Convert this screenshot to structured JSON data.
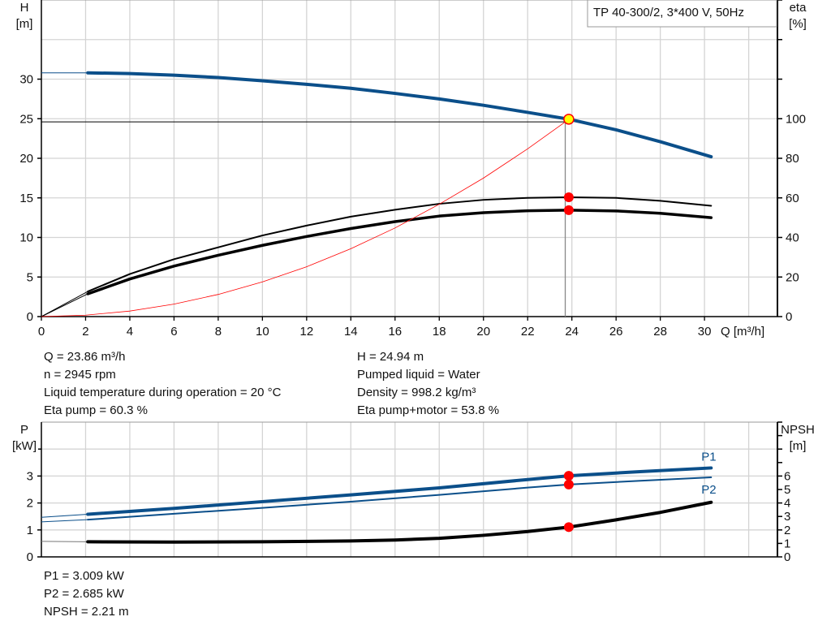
{
  "chart_data": [
    {
      "type": "line",
      "title": "TP 40-300/2, 3*400 V, 50Hz",
      "xlabel": "Q [m³/h]",
      "ylabel_left": [
        "H",
        "[m]"
      ],
      "ylabel_right": [
        "eta",
        "[%]"
      ],
      "xlim": [
        0,
        33.3
      ],
      "x_ticks": [
        0,
        2,
        4,
        6,
        8,
        10,
        12,
        14,
        16,
        18,
        20,
        22,
        24,
        26,
        28,
        30
      ],
      "ylim_left": [
        0,
        40
      ],
      "y_ticks_left": [
        0,
        5,
        10,
        15,
        20,
        25,
        30
      ],
      "ylim_right": [
        0,
        160
      ],
      "y_ticks_right": [
        0,
        20,
        40,
        60,
        80,
        100
      ],
      "grid": true,
      "series": [
        {
          "key": "H",
          "axis": "left",
          "color": "#0b4f8a",
          "x": [
            0,
            2.1,
            4,
            6,
            8,
            10,
            12,
            14,
            16,
            18,
            20,
            22,
            23.86,
            26,
            28,
            30.3
          ],
          "y": [
            30.8,
            30.8,
            30.7,
            30.5,
            30.2,
            29.8,
            29.35,
            28.85,
            28.2,
            27.5,
            26.7,
            25.8,
            24.94,
            23.6,
            22.1,
            20.2
          ]
        },
        {
          "key": "eta_pump",
          "axis": "right",
          "color": "#000000",
          "x": [
            0,
            2.1,
            4,
            6,
            8,
            10,
            12,
            14,
            16,
            18,
            20,
            22,
            23.86,
            26,
            28,
            30.3
          ],
          "y": [
            0,
            12.7,
            21.5,
            29,
            35,
            41,
            46,
            50.5,
            54,
            57,
            59,
            60,
            60.3,
            60,
            58.5,
            56
          ]
        },
        {
          "key": "eta_pump_motor",
          "axis": "right",
          "color": "#000000",
          "x": [
            0,
            2.1,
            4,
            6,
            8,
            10,
            12,
            14,
            16,
            18,
            20,
            22,
            23.86,
            26,
            28,
            30.3
          ],
          "y": [
            0,
            11.5,
            19,
            25.5,
            31,
            36,
            40.5,
            44.5,
            48,
            50.8,
            52.5,
            53.5,
            53.8,
            53.4,
            52.2,
            50
          ]
        },
        {
          "key": "system",
          "axis": "left",
          "color": "#ff0000",
          "x": [
            0,
            2,
            4,
            6,
            8,
            10,
            12,
            14,
            16,
            18,
            20,
            22,
            23.7
          ],
          "y": [
            0,
            0.18,
            0.7,
            1.58,
            2.8,
            4.38,
            6.3,
            8.58,
            11.2,
            14.2,
            17.5,
            21.2,
            24.6
          ]
        }
      ],
      "operating_point": {
        "Q": 23.86,
        "H": 24.94,
        "eta_pump": 60.3,
        "eta_pump_motor": 53.8
      }
    },
    {
      "type": "line",
      "xlim": [
        0,
        33.3
      ],
      "ylabel_left": [
        "P",
        "[kW]"
      ],
      "ylabel_right": [
        "NPSH",
        "[m]"
      ],
      "ylim_left": [
        0,
        5
      ],
      "y_ticks_left": [
        0,
        1,
        2,
        3
      ],
      "ylim_right": [
        0,
        10
      ],
      "y_ticks_right": [
        0,
        1,
        2,
        3,
        4,
        5,
        6
      ],
      "grid": true,
      "series": [
        {
          "name": "P1",
          "key": "P1",
          "axis": "left",
          "color": "#0b4f8a",
          "x": [
            0,
            2.1,
            6,
            10,
            14,
            18,
            22,
            23.86,
            27,
            30.3
          ],
          "y": [
            1.47,
            1.58,
            1.8,
            2.05,
            2.3,
            2.56,
            2.87,
            3.009,
            3.16,
            3.3
          ]
        },
        {
          "name": "P2",
          "key": "P2",
          "axis": "left",
          "color": "#0b4f8a",
          "x": [
            0,
            2.1,
            6,
            10,
            14,
            18,
            22,
            23.86,
            27,
            30.3
          ],
          "y": [
            1.3,
            1.38,
            1.6,
            1.82,
            2.05,
            2.3,
            2.57,
            2.685,
            2.82,
            2.95
          ]
        },
        {
          "key": "NPSH",
          "axis": "right",
          "color": "#000000",
          "x": [
            0,
            2.1,
            6,
            10,
            14,
            16,
            18,
            20,
            22,
            23.86,
            26,
            28,
            30.3
          ],
          "y": [
            1.15,
            1.12,
            1.1,
            1.12,
            1.18,
            1.25,
            1.38,
            1.6,
            1.88,
            2.21,
            2.75,
            3.3,
            4.05
          ]
        }
      ],
      "operating_point": {
        "Q": 23.86,
        "P1": 3.009,
        "P2": 2.685,
        "NPSH": 2.21
      }
    }
  ],
  "info_top_left": [
    "Q = 23.86 m³/h",
    "n = 2945 rpm",
    "Liquid temperature during operation = 20 °C",
    "Eta pump = 60.3 %"
  ],
  "info_top_right": [
    "H = 24.94 m",
    "Pumped liquid = Water",
    "Density = 998.2 kg/m³",
    "Eta pump+motor = 53.8 %"
  ],
  "info_bottom": [
    "P1 = 3.009 kW",
    "P2 = 2.685 kW",
    "NPSH = 2.21 m"
  ]
}
